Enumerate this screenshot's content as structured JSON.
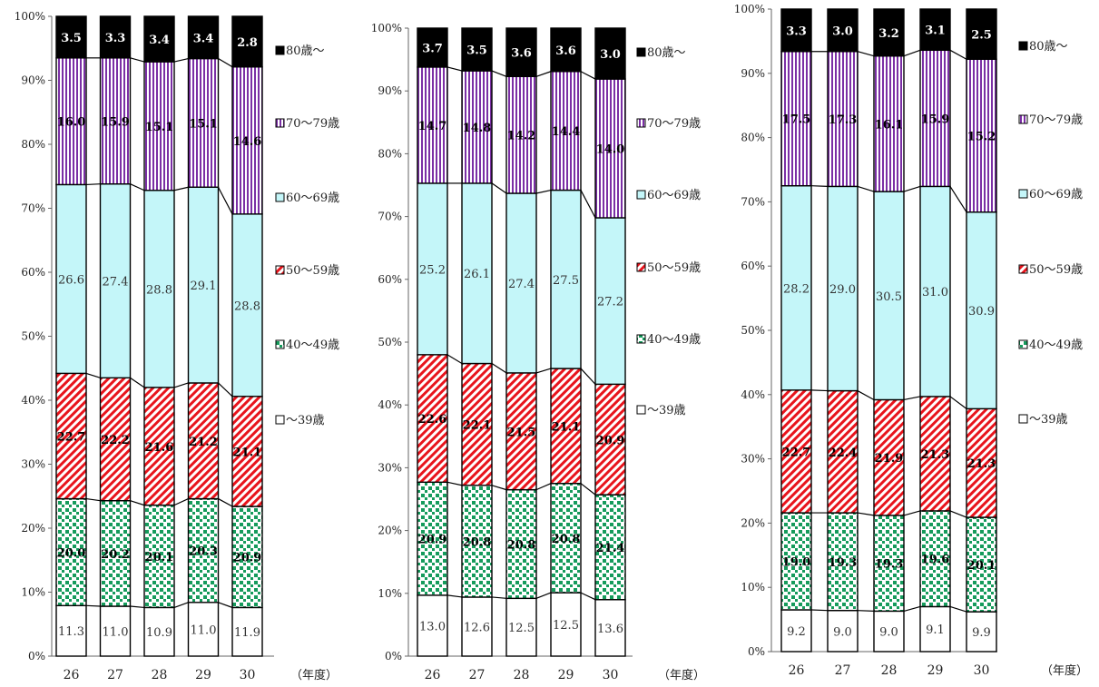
{
  "chart_data": [
    {
      "type": "bar",
      "stacked": true,
      "categories": [
        "26",
        "27",
        "28",
        "29",
        "30"
      ],
      "x_unit": "（年度）",
      "yticks": [
        "0%",
        "10%",
        "20%",
        "30%",
        "40%",
        "50%",
        "60%",
        "70%",
        "80%",
        "90%",
        "100%"
      ],
      "ylim": [
        0,
        100
      ],
      "legend_position": "right",
      "series": [
        {
          "name": "～39歳",
          "values": [
            11.3,
            11.0,
            10.9,
            11.0,
            11.9
          ],
          "labels": [
            "11.3",
            "11.0",
            "10.9",
            "11.0",
            "11.9"
          ],
          "shares": [
            7.9,
            7.8,
            7.6,
            8.4,
            7.6
          ]
        },
        {
          "name": "40～49歳",
          "values": [
            20.0,
            20.2,
            20.1,
            20.3,
            20.9
          ],
          "labels": [
            "20.0",
            "20.2",
            "20.1",
            "20.3",
            "20.9"
          ],
          "shares": [
            16.7,
            16.5,
            16.0,
            16.2,
            15.8
          ]
        },
        {
          "name": "50～59歳",
          "values": [
            22.7,
            22.2,
            21.6,
            21.2,
            21.1
          ],
          "labels": [
            "22.7",
            "22.2",
            "21.6",
            "21.2",
            "21.1"
          ],
          "shares": [
            19.6,
            19.2,
            18.4,
            18.1,
            17.2
          ]
        },
        {
          "name": "60～69歳",
          "values": [
            26.6,
            27.4,
            28.8,
            29.1,
            28.8
          ],
          "labels": [
            "26.6",
            "27.4",
            "28.8",
            "29.1",
            "28.8"
          ],
          "shares": [
            29.5,
            30.3,
            30.8,
            30.6,
            28.5
          ]
        },
        {
          "name": "70～79歳",
          "values": [
            16.0,
            15.9,
            15.1,
            15.1,
            14.6
          ],
          "labels": [
            "16.0",
            "15.9",
            "15.1",
            "15.1",
            "14.6"
          ],
          "shares": [
            19.8,
            19.7,
            20.1,
            20.1,
            23.0
          ]
        },
        {
          "name": "80歳～",
          "values": [
            3.5,
            3.3,
            3.4,
            3.4,
            2.8
          ],
          "labels": [
            "3.5",
            "3.3",
            "3.4",
            "3.4",
            "2.8"
          ],
          "shares": [
            6.5,
            6.5,
            7.1,
            6.6,
            7.9
          ]
        }
      ]
    },
    {
      "type": "bar",
      "stacked": true,
      "categories": [
        "26",
        "27",
        "28",
        "29",
        "30"
      ],
      "x_unit": "（年度）",
      "yticks": [
        "0%",
        "10%",
        "20%",
        "30%",
        "40%",
        "50%",
        "60%",
        "70%",
        "80%",
        "90%",
        "100%"
      ],
      "ylim": [
        0,
        100
      ],
      "legend_position": "right",
      "series": [
        {
          "name": "～39歳",
          "values": [
            13.0,
            12.6,
            12.5,
            12.5,
            13.6
          ],
          "labels": [
            "13.0",
            "12.6",
            "12.5",
            "12.5",
            "13.6"
          ],
          "shares": [
            9.7,
            9.4,
            9.2,
            10.1,
            9.0
          ]
        },
        {
          "name": "40～49歳",
          "values": [
            20.9,
            20.8,
            20.8,
            20.8,
            21.4
          ],
          "labels": [
            "20.9",
            "20.8",
            "20.8",
            "20.8",
            "21.4"
          ],
          "shares": [
            18.0,
            17.8,
            17.3,
            17.4,
            16.7
          ]
        },
        {
          "name": "50～59歳",
          "values": [
            22.6,
            22.1,
            21.5,
            21.1,
            20.9
          ],
          "labels": [
            "22.6",
            "22.1",
            "21.5",
            "21.1",
            "20.9"
          ],
          "shares": [
            20.3,
            19.4,
            18.6,
            18.3,
            17.6
          ]
        },
        {
          "name": "60～69歳",
          "values": [
            25.2,
            26.1,
            27.4,
            27.5,
            27.2
          ],
          "labels": [
            "25.2",
            "26.1",
            "27.4",
            "27.5",
            "27.2"
          ],
          "shares": [
            27.3,
            28.7,
            28.6,
            28.4,
            26.5
          ]
        },
        {
          "name": "70～79歳",
          "values": [
            14.7,
            14.8,
            14.2,
            14.4,
            14.0
          ],
          "labels": [
            "14.7",
            "14.8",
            "14.2",
            "14.4",
            "14.0"
          ],
          "shares": [
            18.5,
            17.9,
            18.6,
            18.9,
            22.1
          ]
        },
        {
          "name": "80歳～",
          "values": [
            3.7,
            3.5,
            3.6,
            3.6,
            3.0
          ],
          "labels": [
            "3.7",
            "3.5",
            "3.6",
            "3.6",
            "3.0"
          ],
          "shares": [
            6.2,
            6.8,
            7.7,
            6.9,
            8.1
          ]
        }
      ]
    },
    {
      "type": "bar",
      "stacked": true,
      "categories": [
        "26",
        "27",
        "28",
        "29",
        "30"
      ],
      "x_unit": "（年度）",
      "yticks": [
        "0%",
        "10%",
        "20%",
        "30%",
        "40%",
        "50%",
        "60%",
        "70%",
        "80%",
        "90%",
        "100%"
      ],
      "ylim": [
        0,
        100
      ],
      "legend_position": "right",
      "series": [
        {
          "name": "～39歳",
          "values": [
            9.2,
            9.0,
            9.0,
            9.1,
            9.9
          ],
          "labels": [
            "9.2",
            "9.0",
            "9.0",
            "9.1",
            "9.9"
          ],
          "shares": [
            6.5,
            6.4,
            6.3,
            7.0,
            6.2
          ]
        },
        {
          "name": "40～49歳",
          "values": [
            19.0,
            19.3,
            19.3,
            19.6,
            20.1
          ],
          "labels": [
            "19.0",
            "19.3",
            "19.3",
            "19.6",
            "20.1"
          ],
          "shares": [
            15.1,
            15.2,
            14.9,
            14.9,
            14.7
          ]
        },
        {
          "name": "50～59歳",
          "values": [
            22.7,
            22.4,
            21.9,
            21.3,
            21.3
          ],
          "labels": [
            "22.7",
            "22.4",
            "21.9",
            "21.3",
            "21.3"
          ],
          "shares": [
            19.1,
            19.0,
            18.0,
            17.8,
            16.9
          ]
        },
        {
          "name": "60～69歳",
          "values": [
            28.2,
            29.0,
            30.5,
            31.0,
            30.9
          ],
          "labels": [
            "28.2",
            "29.0",
            "30.5",
            "31.0",
            "30.9"
          ],
          "shares": [
            31.8,
            31.8,
            32.4,
            32.7,
            30.6
          ]
        },
        {
          "name": "70～79歳",
          "values": [
            17.5,
            17.3,
            16.1,
            15.9,
            15.2
          ],
          "labels": [
            "17.5",
            "17.3",
            "16.1",
            "15.9",
            "15.2"
          ],
          "shares": [
            20.9,
            21.0,
            21.1,
            21.2,
            23.8
          ]
        },
        {
          "name": "80歳～",
          "values": [
            3.3,
            3.0,
            3.2,
            3.1,
            2.5
          ],
          "labels": [
            "3.3",
            "3.0",
            "3.2",
            "3.1",
            "2.5"
          ],
          "shares": [
            6.6,
            6.6,
            7.3,
            6.4,
            7.8
          ]
        }
      ]
    }
  ],
  "colors": {
    "under39": "#ffffff",
    "age40s": "#169b5c",
    "age50s": "#e8141c",
    "age60s": "#c4f6f9",
    "age70s": "#7b2fa5",
    "age80plus": "#000000"
  }
}
